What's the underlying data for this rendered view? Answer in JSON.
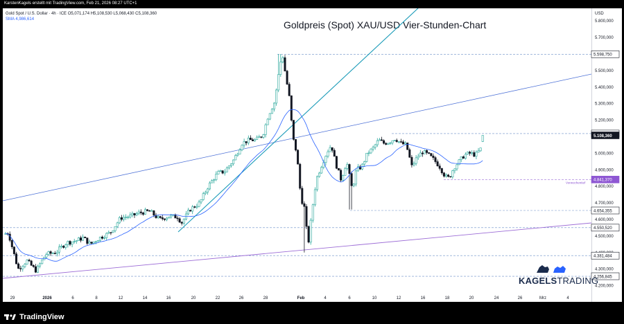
{
  "header": {
    "attribution": "KarstenKagels erstellt mit TradingView.com, Feb 21, 2026 08:27 UTC+1"
  },
  "legend": {
    "symbol_line": "Gold Spot / U.S. Dollar · 4h · ICE  O5,071,174  H5,108,530  L5,068,430  C5,108,360",
    "sma_line": "SMA  4,986,614"
  },
  "currency": "USD",
  "brand": {
    "tradingview": "TradingView",
    "kagels_bold": "KAGELS",
    "kagels_light": "TRADING"
  },
  "colors": {
    "up": "#26a69a",
    "down": "#131722",
    "candle_up": "#ffffff",
    "sma": "#2962ff",
    "trend_teal": "#1a9bb8",
    "trend_blue": "#4a6fd6",
    "trend_purple": "#9c6cd6",
    "level": "#6b8fc8",
    "current_badge": "#131722",
    "purple_badge": "#8e57d3"
  },
  "chart_data": {
    "type": "candlestick",
    "title": "Goldpreis (Spot) XAU/USD Vier-Stunden-Chart",
    "ylabel": "USD",
    "ylim": [
      4180,
      5980
    ],
    "x_ticks": [
      "29",
      "2026",
      "6",
      "8",
      "12",
      "14",
      "16",
      "20",
      "22",
      "26",
      "28",
      "Feb",
      "4",
      "6",
      "10",
      "12",
      "16",
      "18",
      "20",
      "24",
      "26",
      "Mrz",
      "4"
    ],
    "y_ticks": [
      {
        "value": 5800,
        "label": "5.800,000"
      },
      {
        "value": 5700,
        "label": "5.700,000"
      },
      {
        "value": 5500,
        "label": "5.500,000"
      },
      {
        "value": 5400,
        "label": "5.400,000"
      },
      {
        "value": 5300,
        "label": "5.300,000"
      },
      {
        "value": 5200,
        "label": "5.200,000"
      },
      {
        "value": 5000,
        "label": "5.000,000"
      },
      {
        "value": 4900,
        "label": "4.900,000"
      },
      {
        "value": 4800,
        "label": "4.800,000"
      },
      {
        "value": 4700,
        "label": "4.700,000"
      },
      {
        "value": 4600,
        "label": "4.600,000"
      },
      {
        "value": 4500,
        "label": "4.500,000"
      },
      {
        "value": 4400,
        "label": "4.400,000"
      },
      {
        "value": 4300,
        "label": "4.300,000"
      },
      {
        "value": 4200,
        "label": "4.200,000"
      }
    ],
    "levels": [
      {
        "value": 5598.75,
        "label": "5.598,750",
        "style": "outline"
      },
      {
        "value": 5119.159,
        "label": "5.119,159",
        "style": "outline"
      },
      {
        "value": 5108.36,
        "label": "5.108,360",
        "style": "current"
      },
      {
        "value": 4841.37,
        "label": "4.841,370",
        "style": "purple",
        "note": "Vorwochentief"
      },
      {
        "value": 4654.355,
        "label": "4.654,355",
        "style": "outline"
      },
      {
        "value": 4550.52,
        "label": "4.550,520",
        "style": "outline"
      },
      {
        "value": 4381.484,
        "label": "4.381,484",
        "style": "outline"
      },
      {
        "value": 4256.845,
        "label": "4.256,845",
        "style": "outline"
      }
    ],
    "sma_last": 4986.614,
    "ohlc_last": {
      "open": 5071.174,
      "high": 5108.53,
      "low": 5068.43,
      "close": 5108.36
    },
    "anchors": [
      [
        0,
        4510
      ],
      [
        8,
        4520
      ],
      [
        22,
        4300
      ],
      [
        35,
        4350
      ],
      [
        48,
        4290
      ],
      [
        62,
        4390
      ],
      [
        76,
        4400
      ],
      [
        92,
        4460
      ],
      [
        105,
        4470
      ],
      [
        116,
        4490
      ],
      [
        126,
        4450
      ],
      [
        140,
        4490
      ],
      [
        155,
        4520
      ],
      [
        170,
        4610
      ],
      [
        185,
        4620
      ],
      [
        197,
        4640
      ],
      [
        212,
        4650
      ],
      [
        226,
        4600
      ],
      [
        240,
        4620
      ],
      [
        252,
        4615
      ],
      [
        258,
        4580
      ],
      [
        270,
        4660
      ],
      [
        284,
        4700
      ],
      [
        296,
        4800
      ],
      [
        310,
        4880
      ],
      [
        320,
        4890
      ],
      [
        333,
        4960
      ],
      [
        345,
        5060
      ],
      [
        355,
        5080
      ],
      [
        365,
        5080
      ],
      [
        375,
        5110
      ],
      [
        383,
        5230
      ],
      [
        392,
        5310
      ],
      [
        398,
        5480
      ],
      [
        403,
        5610
      ],
      [
        408,
        5470
      ],
      [
        414,
        5320
      ],
      [
        418,
        5100
      ],
      [
        424,
        5000
      ],
      [
        430,
        4730
      ],
      [
        436,
        4660
      ],
      [
        440,
        4430
      ],
      [
        446,
        4650
      ],
      [
        452,
        4840
      ],
      [
        460,
        4930
      ],
      [
        468,
        5010
      ],
      [
        474,
        5050
      ],
      [
        480,
        4940
      ],
      [
        488,
        4840
      ],
      [
        496,
        4950
      ],
      [
        504,
        4780
      ],
      [
        510,
        4900
      ],
      [
        518,
        4920
      ],
      [
        526,
        5000
      ],
      [
        534,
        5030
      ],
      [
        542,
        5080
      ],
      [
        550,
        5060
      ],
      [
        558,
        5070
      ],
      [
        566,
        5090
      ],
      [
        574,
        5060
      ],
      [
        582,
        5050
      ],
      [
        590,
        4920
      ],
      [
        598,
        4980
      ],
      [
        606,
        5010
      ],
      [
        614,
        4990
      ],
      [
        622,
        4960
      ],
      [
        630,
        4920
      ],
      [
        638,
        4860
      ],
      [
        644,
        4850
      ],
      [
        650,
        4910
      ],
      [
        658,
        4950
      ],
      [
        666,
        4990
      ],
      [
        674,
        5000
      ],
      [
        682,
        4990
      ],
      [
        690,
        5030
      ],
      [
        696,
        5108
      ]
    ]
  }
}
